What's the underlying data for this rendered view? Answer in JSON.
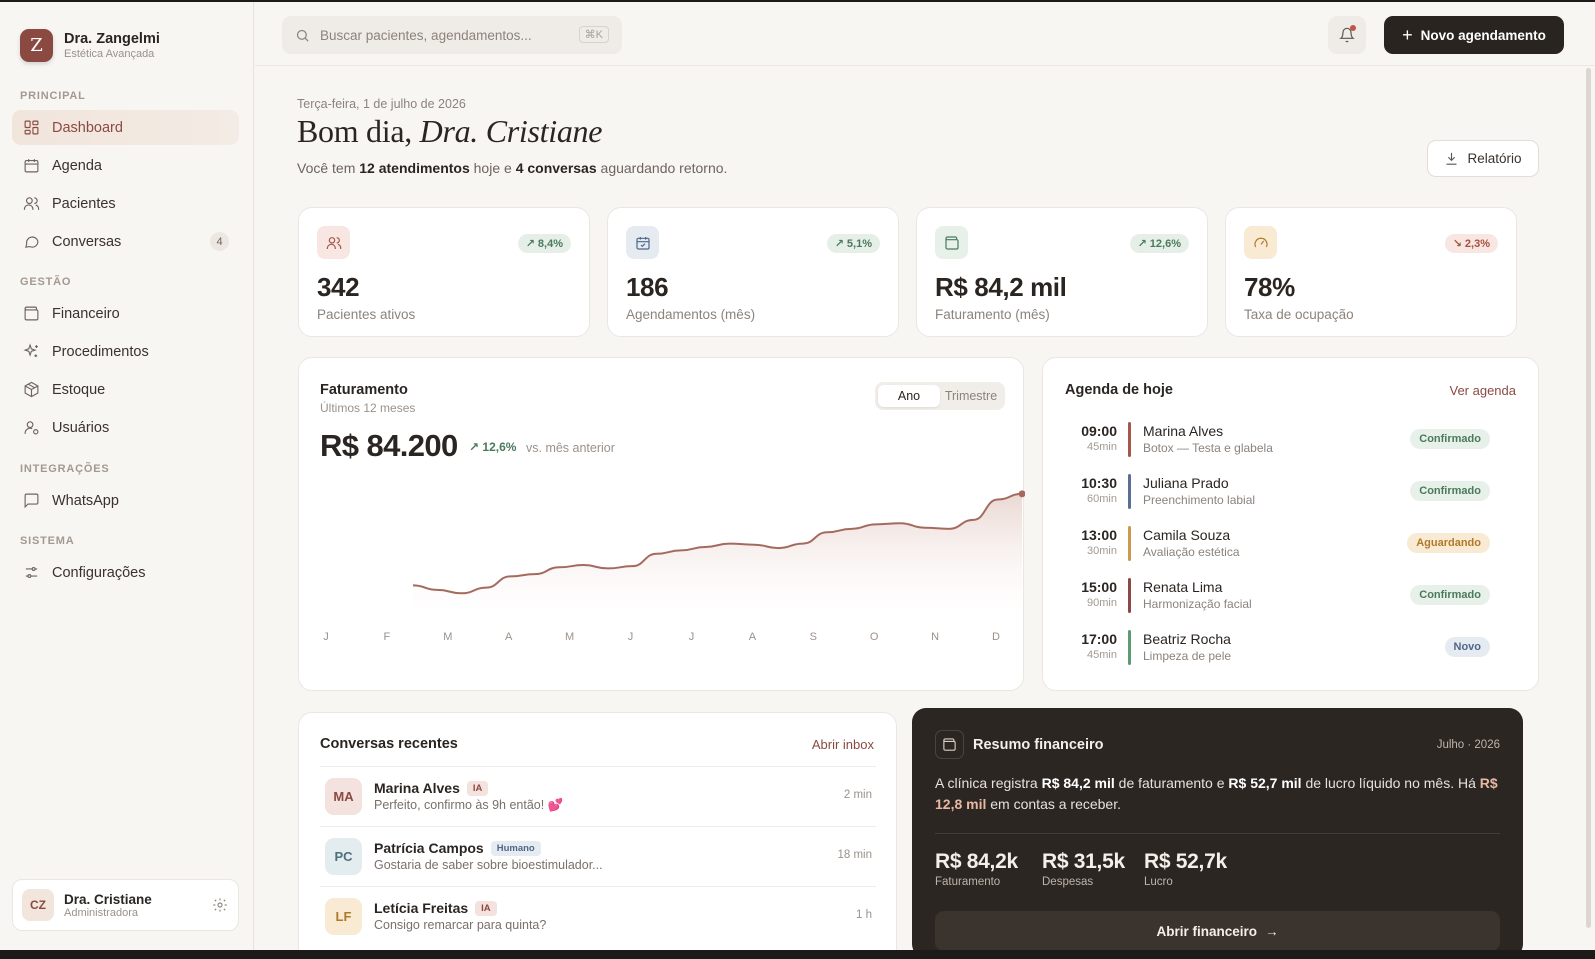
{
  "brand": {
    "initial": "Z",
    "name": "Dra. Zangelmi",
    "subtitle": "Estética Avançada"
  },
  "sidebar": {
    "sections": [
      "PRINCIPAL",
      "GESTÃO",
      "INTEGRAÇÕES",
      "SISTEMA"
    ],
    "items": [
      {
        "label": "Dashboard",
        "icon": "dashboard-icon"
      },
      {
        "label": "Agenda",
        "icon": "calendar-icon"
      },
      {
        "label": "Pacientes",
        "icon": "users-icon"
      },
      {
        "label": "Conversas",
        "icon": "chat-icon",
        "badge": "4"
      },
      {
        "label": "Financeiro",
        "icon": "wallet-icon"
      },
      {
        "label": "Procedimentos",
        "icon": "sparkles-icon"
      },
      {
        "label": "Estoque",
        "icon": "package-icon"
      },
      {
        "label": "Usuários",
        "icon": "user-cog-icon"
      },
      {
        "label": "WhatsApp",
        "icon": "message-square-icon"
      },
      {
        "label": "Configurações",
        "icon": "sliders-icon"
      }
    ],
    "user": {
      "initials": "CZ",
      "name": "Dra. Cristiane",
      "role": "Administradora"
    }
  },
  "topbar": {
    "search_placeholder": "Buscar pacientes, agendamentos...",
    "shortcut": "⌘K",
    "new_button": "Novo agendamento"
  },
  "header": {
    "date": "Terça-feira, 1 de julho de 2026",
    "greeting": "Bom dia,",
    "greeting_name": "Dra. Cristiane",
    "summary_1": "Você tem ",
    "summary_b1": "12 atendimentos",
    "summary_2": " hoje e ",
    "summary_b2": "4 conversas",
    "summary_3": " aguardando retorno.",
    "report_button": "Relatório"
  },
  "kpis": [
    {
      "value": "342",
      "label": "Pacientes ativos",
      "delta": "8,4%",
      "trend": "up",
      "icon": "users-icon"
    },
    {
      "value": "186",
      "label": "Agendamentos (mês)",
      "delta": "5,1%",
      "trend": "up",
      "icon": "calendar-check-icon"
    },
    {
      "value": "R$ 84,2 mil",
      "label": "Faturamento (mês)",
      "delta": "12,6%",
      "trend": "up",
      "icon": "wallet-icon"
    },
    {
      "value": "78%",
      "label": "Taxa de ocupação",
      "delta": "2,3%",
      "trend": "down",
      "icon": "gauge-icon"
    }
  ],
  "revenue": {
    "title": "Faturamento",
    "subtitle": "Últimos 12 meses",
    "toggle": [
      "Ano",
      "Trimestre"
    ],
    "value": "R$ 84.200",
    "delta": "12,6%",
    "vs": "vs. mês anterior"
  },
  "chart_data": {
    "type": "area",
    "categories": [
      "J",
      "F",
      "M",
      "A",
      "M",
      "J",
      "J",
      "A",
      "S",
      "O",
      "N",
      "D"
    ],
    "x": [
      0,
      0.4,
      0.8,
      1.2,
      1.6,
      2.0,
      2.4,
      2.8,
      3.2,
      3.6,
      4.0,
      4.4,
      4.8,
      5.2,
      5.6,
      6.0,
      6.4,
      6.8,
      7.2,
      7.6,
      8.0,
      8.4,
      8.8,
      9.2,
      9.6,
      10.0
    ],
    "series": [
      {
        "values": [
          100,
          96,
          93,
          98,
          108,
          110,
          116,
          118,
          115,
          117,
          128,
          131,
          134,
          137,
          136,
          133,
          137,
          147,
          150,
          154,
          155,
          151,
          150,
          158,
          176,
          181
        ]
      }
    ],
    "ylim": [
      80,
      195
    ],
    "grid": false,
    "highlight_last_point": true,
    "line_color": "#a56a5f"
  },
  "agenda": {
    "title": "Agenda de hoje",
    "link": "Ver agenda",
    "items": [
      {
        "time": "09:00",
        "duration": "45min",
        "name": "Marina Alves",
        "procedure": "Botox — Testa e glabela",
        "status": "Confirmado",
        "kind": "conf",
        "color": "#a5574b"
      },
      {
        "time": "10:30",
        "duration": "60min",
        "name": "Juliana Prado",
        "procedure": "Preenchimento labial",
        "status": "Confirmado",
        "kind": "conf",
        "color": "#5b6f93"
      },
      {
        "time": "13:00",
        "duration": "30min",
        "name": "Camila Souza",
        "procedure": "Avaliação estética",
        "status": "Aguardando",
        "kind": "wait",
        "color": "#cc9a4c"
      },
      {
        "time": "15:00",
        "duration": "90min",
        "name": "Renata Lima",
        "procedure": "Harmonização facial",
        "status": "Confirmado",
        "kind": "conf",
        "color": "#8a4945"
      },
      {
        "time": "17:00",
        "duration": "45min",
        "name": "Beatriz Rocha",
        "procedure": "Limpeza de pele",
        "status": "Novo",
        "kind": "new",
        "color": "#5e9a73"
      }
    ]
  },
  "conversations": {
    "title": "Conversas recentes",
    "link": "Abrir inbox",
    "items": [
      {
        "initials": "MA",
        "name": "Marina Alves",
        "tag": "IA",
        "tag_kind": "ia",
        "message": "Perfeito, confirmo às 9h então! 💕",
        "time": "2 min",
        "bg": "#f3e2dd",
        "fg": "#8b4a41"
      },
      {
        "initials": "PC",
        "name": "Patrícia Campos",
        "tag": "Humano",
        "tag_kind": "hum",
        "message": "Gostaria de saber sobre bioestimulador...",
        "time": "18 min",
        "bg": "#e3ecef",
        "fg": "#4e6f7c"
      },
      {
        "initials": "LF",
        "name": "Letícia Freitas",
        "tag": "IA",
        "tag_kind": "ia",
        "message": "Consigo remarcar para quinta?",
        "time": "1 h",
        "bg": "#f8ead3",
        "fg": "#b07a2a"
      }
    ]
  },
  "finance": {
    "title": "Resumo financeiro",
    "date": "Julho · 2026",
    "text_1": "A clínica registra ",
    "b1": "R$ 84,2 mil",
    "text_2": " de faturamento e ",
    "b2": "R$ 52,7 mil",
    "text_3": " de lucro líquido no mês. Há ",
    "b3": "R$ 12,8 mil",
    "text_4": " em contas a receber.",
    "stats": [
      {
        "value": "R$ 84,2k",
        "label": "Faturamento"
      },
      {
        "value": "R$ 31,5k",
        "label": "Despesas"
      },
      {
        "value": "R$ 52,7k",
        "label": "Lucro"
      }
    ],
    "button": "Abrir financeiro"
  }
}
